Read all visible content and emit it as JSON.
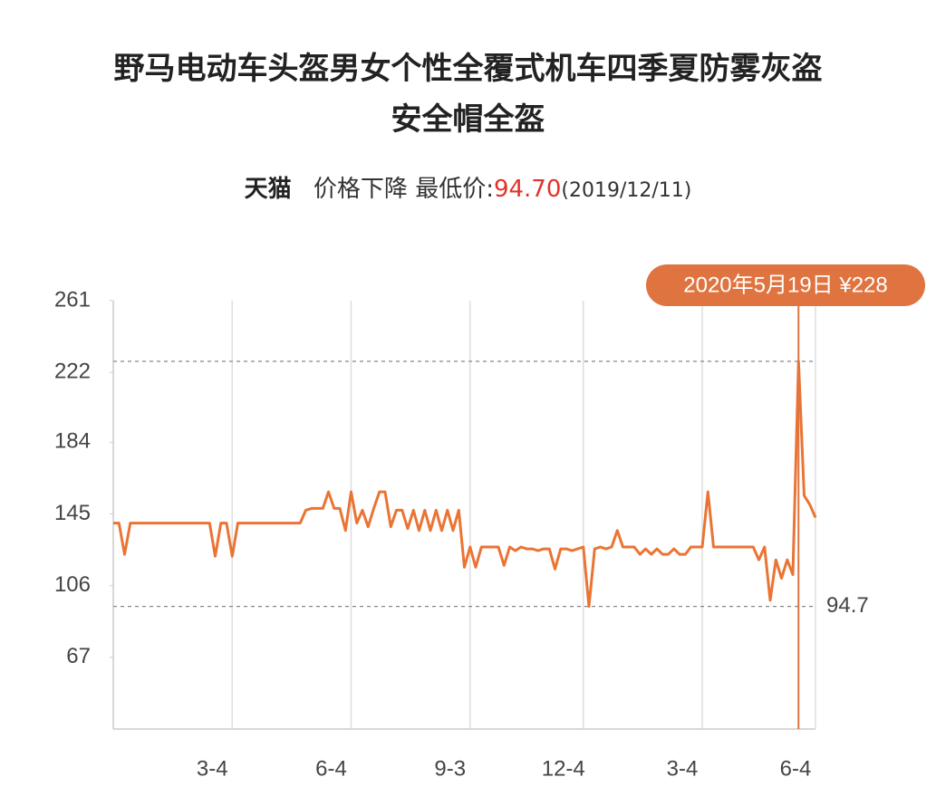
{
  "chart_data": {
    "type": "line",
    "title_lines": [
      "野马电动车头盔男女个性全覆式机车四季夏防雾灰盗",
      "安全帽全盔"
    ],
    "shop": "天猫",
    "trend": "价格下降",
    "lowest_label": "最低价:",
    "lowest_price": "94.70",
    "lowest_date": "(2019/12/11)",
    "peak_label": "2020年5月19日 ¥228",
    "reference_lines": [
      228,
      94.7
    ],
    "color": "#ea7434",
    "callout_color": "#df7440",
    "ylim": [
      28,
      261
    ],
    "yticks": [
      261,
      222,
      184,
      145,
      106,
      67
    ],
    "categories": [
      null,
      null,
      null,
      null,
      null,
      null,
      null,
      null,
      null,
      null,
      null,
      null,
      null,
      null,
      null,
      null,
      null,
      null,
      null,
      null,
      null,
      "3-4",
      null,
      null,
      null,
      null,
      null,
      null,
      null,
      null,
      null,
      null,
      null,
      null,
      null,
      null,
      null,
      null,
      null,
      null,
      null,
      null,
      "6-4",
      null,
      null,
      null,
      null,
      null,
      null,
      null,
      null,
      null,
      null,
      null,
      null,
      null,
      null,
      null,
      null,
      null,
      null,
      null,
      null,
      "9-3",
      null,
      null,
      null,
      null,
      null,
      null,
      null,
      null,
      null,
      null,
      null,
      null,
      null,
      null,
      null,
      null,
      null,
      null,
      null,
      "12-4",
      null,
      null,
      null,
      null,
      null,
      null,
      null,
      null,
      null,
      null,
      null,
      null,
      null,
      null,
      null,
      null,
      null,
      null,
      null,
      null,
      "3-4",
      null,
      null,
      null,
      null,
      null,
      null,
      null,
      null,
      null,
      null,
      null,
      null,
      null,
      null,
      null,
      null,
      null,
      null,
      null,
      "6-4"
    ],
    "values": [
      140,
      140,
      123,
      140,
      140,
      140,
      140,
      140,
      140,
      140,
      140,
      140,
      140,
      140,
      140,
      140,
      140,
      140,
      122,
      140,
      140,
      122,
      140,
      140,
      140,
      140,
      140,
      140,
      140,
      140,
      140,
      140,
      140,
      140,
      147,
      148,
      148,
      148,
      157,
      148,
      148,
      136,
      157,
      140,
      147,
      138,
      148,
      157,
      157,
      138,
      147,
      147,
      137,
      147,
      136,
      147,
      136,
      147,
      136,
      147,
      136,
      147,
      116,
      127,
      116,
      127,
      127,
      127,
      127,
      117,
      127,
      125,
      127,
      126,
      126,
      125,
      126,
      126,
      115,
      126,
      126,
      125,
      126,
      127,
      94.7,
      126,
      127,
      126,
      127,
      136,
      127,
      127,
      127,
      123,
      126,
      123,
      126,
      123,
      123,
      126,
      123,
      123,
      127,
      127,
      127,
      157,
      127,
      127,
      127,
      127,
      127,
      127,
      127,
      127,
      120,
      127,
      98,
      120,
      110,
      120,
      112,
      228,
      155,
      150,
      143
    ]
  }
}
